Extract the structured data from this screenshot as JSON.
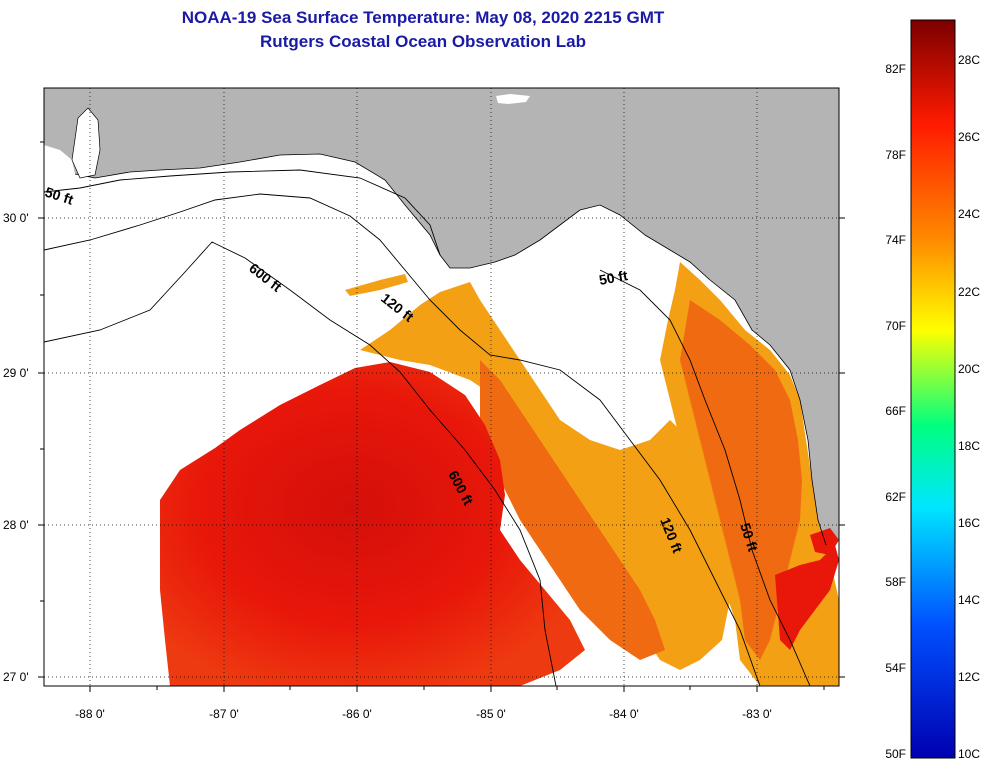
{
  "title": {
    "line1": "NOAA-19 Sea Surface Temperature:  May 08, 2020 2215 GMT",
    "line2": "Rutgers Coastal Ocean Observation Lab"
  },
  "map": {
    "lat_labels": [
      "30 0'",
      "29 0'",
      "28 0'",
      "27 0'"
    ],
    "lon_labels": [
      "-88 0'",
      "-87 0'",
      "-86 0'",
      "-85 0'",
      "-84 0'",
      "-83 0'"
    ],
    "contours": [
      "50 ft",
      "600 ft",
      "120 ft",
      "50 ft",
      "600 ft",
      "120 ft",
      "50 ft"
    ]
  },
  "colorbar": {
    "fahrenheit_labels": [
      "82F",
      "78F",
      "74F",
      "70F",
      "66F",
      "62F",
      "58F",
      "54F",
      "50F"
    ],
    "celsius_labels": [
      "28C",
      "26C",
      "24C",
      "22C",
      "20C",
      "18C",
      "16C",
      "14C",
      "12C",
      "10C"
    ],
    "colors": [
      "#7a0000",
      "#ff1a00",
      "#ff8c00",
      "#ffff00",
      "#00ff80",
      "#00e6ff",
      "#0050ff",
      "#0000b0"
    ]
  },
  "colors": {
    "land": "#b4b4b4",
    "water_no_data": "#ffffff",
    "sst_warm": "#e8170a",
    "sst_mid": "#f05a0e",
    "sst_cool": "#f4a015"
  }
}
